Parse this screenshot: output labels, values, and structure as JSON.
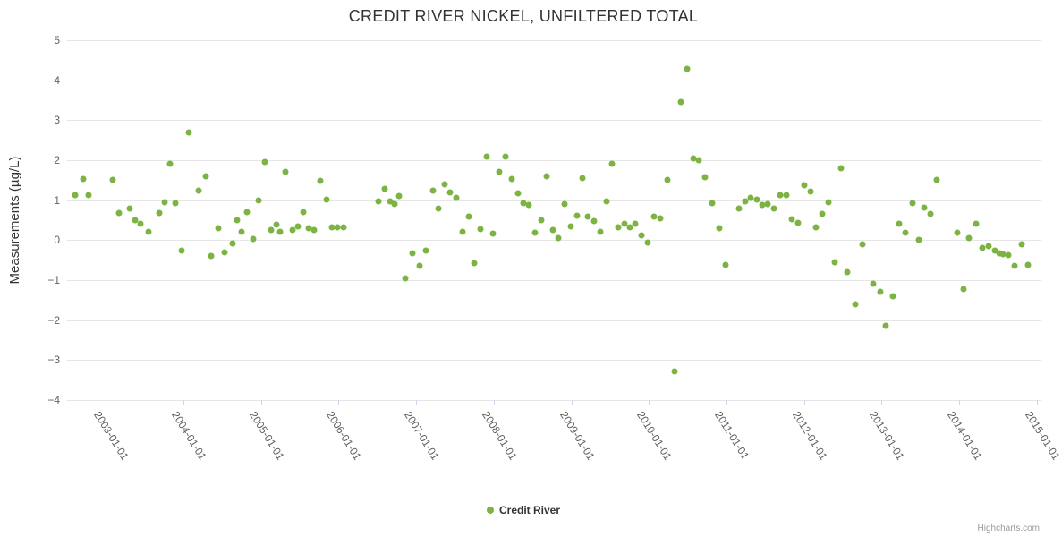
{
  "chart_data": {
    "type": "scatter",
    "title": "CREDIT RIVER NICKEL, UNFILTERED TOTAL",
    "xlabel": "",
    "ylabel": "Measurements (µg/L)",
    "ylim": [
      -4,
      5
    ],
    "xlim": [
      2002.5,
      2015.05
    ],
    "x_unit": "decimal_year",
    "grid": "horizontal",
    "legend_position": "bottom-center",
    "y_ticks": [
      5,
      4,
      3,
      2,
      1,
      0,
      -1,
      -2,
      -3,
      -4
    ],
    "x_ticks": [
      {
        "label": "2003-01-01",
        "x": 2003
      },
      {
        "label": "2004-01-01",
        "x": 2004
      },
      {
        "label": "2005-01-01",
        "x": 2005
      },
      {
        "label": "2006-01-01",
        "x": 2006
      },
      {
        "label": "2007-01-01",
        "x": 2007
      },
      {
        "label": "2008-01-01",
        "x": 2008
      },
      {
        "label": "2009-01-01",
        "x": 2009
      },
      {
        "label": "2010-01-01",
        "x": 2010
      },
      {
        "label": "2011-01-01",
        "x": 2011
      },
      {
        "label": "2012-01-01",
        "x": 2012
      },
      {
        "label": "2013-01-01",
        "x": 2013
      },
      {
        "label": "2014-01-01",
        "x": 2014
      },
      {
        "label": "2015-01-01",
        "x": 2015
      }
    ],
    "series": [
      {
        "name": "Credit River",
        "color": "#7CB342",
        "points": [
          [
            2002.6,
            1.12
          ],
          [
            2002.71,
            1.52
          ],
          [
            2002.78,
            1.12
          ],
          [
            2003.09,
            1.5
          ],
          [
            2003.17,
            0.67
          ],
          [
            2003.31,
            0.8
          ],
          [
            2003.38,
            0.51
          ],
          [
            2003.45,
            0.42
          ],
          [
            2003.55,
            0.2
          ],
          [
            2003.69,
            0.67
          ],
          [
            2003.76,
            0.94
          ],
          [
            2003.83,
            1.9
          ],
          [
            2003.9,
            0.92
          ],
          [
            2003.98,
            -0.25
          ],
          [
            2004.07,
            2.7
          ],
          [
            2004.2,
            1.25
          ],
          [
            2004.29,
            1.6
          ],
          [
            2004.36,
            -0.4
          ],
          [
            2004.45,
            0.3
          ],
          [
            2004.53,
            -0.3
          ],
          [
            2004.63,
            -0.08
          ],
          [
            2004.69,
            0.5
          ],
          [
            2004.75,
            0.22
          ],
          [
            2004.82,
            0.7
          ],
          [
            2004.9,
            0.02
          ],
          [
            2004.97,
            1.0
          ],
          [
            2005.05,
            1.95
          ],
          [
            2005.13,
            0.25
          ],
          [
            2005.2,
            0.38
          ],
          [
            2005.25,
            0.22
          ],
          [
            2005.32,
            1.72
          ],
          [
            2005.41,
            0.25
          ],
          [
            2005.48,
            0.35
          ],
          [
            2005.55,
            0.7
          ],
          [
            2005.62,
            0.3
          ],
          [
            2005.68,
            0.25
          ],
          [
            2005.76,
            1.48
          ],
          [
            2005.84,
            1.02
          ],
          [
            2005.92,
            0.33
          ],
          [
            2005.98,
            0.33
          ],
          [
            2006.06,
            0.33
          ],
          [
            2006.51,
            0.96
          ],
          [
            2006.59,
            1.28
          ],
          [
            2006.66,
            0.96
          ],
          [
            2006.72,
            0.9
          ],
          [
            2006.78,
            1.1
          ],
          [
            2006.86,
            -0.95
          ],
          [
            2006.95,
            -0.33
          ],
          [
            2007.05,
            -0.65
          ],
          [
            2007.13,
            -0.27
          ],
          [
            2007.22,
            1.23
          ],
          [
            2007.29,
            0.8
          ],
          [
            2007.37,
            1.4
          ],
          [
            2007.44,
            1.2
          ],
          [
            2007.52,
            1.05
          ],
          [
            2007.6,
            0.22
          ],
          [
            2007.68,
            0.6
          ],
          [
            2007.75,
            -0.58
          ],
          [
            2007.83,
            0.28
          ],
          [
            2007.91,
            2.08
          ],
          [
            2007.99,
            0.17
          ],
          [
            2008.07,
            1.7
          ],
          [
            2008.15,
            2.1
          ],
          [
            2008.23,
            1.52
          ],
          [
            2008.31,
            1.18
          ],
          [
            2008.38,
            0.92
          ],
          [
            2008.45,
            0.88
          ],
          [
            2008.53,
            0.18
          ],
          [
            2008.61,
            0.5
          ],
          [
            2008.68,
            1.6
          ],
          [
            2008.76,
            0.25
          ],
          [
            2008.83,
            0.05
          ],
          [
            2008.91,
            0.9
          ],
          [
            2008.99,
            0.35
          ],
          [
            2009.07,
            0.62
          ],
          [
            2009.14,
            1.55
          ],
          [
            2009.21,
            0.6
          ],
          [
            2009.29,
            0.47
          ],
          [
            2009.37,
            0.2
          ],
          [
            2009.45,
            0.97
          ],
          [
            2009.53,
            1.9
          ],
          [
            2009.61,
            0.33
          ],
          [
            2009.69,
            0.4
          ],
          [
            2009.76,
            0.33
          ],
          [
            2009.83,
            0.42
          ],
          [
            2009.91,
            0.12
          ],
          [
            2009.99,
            -0.05
          ],
          [
            2010.07,
            0.58
          ],
          [
            2010.15,
            0.55
          ],
          [
            2010.24,
            1.5
          ],
          [
            2010.33,
            -3.28
          ],
          [
            2010.41,
            3.45
          ],
          [
            2010.49,
            4.28
          ],
          [
            2010.57,
            2.05
          ],
          [
            2010.64,
            2.0
          ],
          [
            2010.72,
            1.57
          ],
          [
            2010.82,
            0.93
          ],
          [
            2010.91,
            0.3
          ],
          [
            2010.99,
            -0.62
          ],
          [
            2011.16,
            0.8
          ],
          [
            2011.24,
            0.97
          ],
          [
            2011.31,
            1.07
          ],
          [
            2011.39,
            1.02
          ],
          [
            2011.46,
            0.87
          ],
          [
            2011.53,
            0.9
          ],
          [
            2011.61,
            0.78
          ],
          [
            2011.69,
            1.12
          ],
          [
            2011.77,
            1.12
          ],
          [
            2011.84,
            0.53
          ],
          [
            2011.92,
            0.43
          ],
          [
            2012.0,
            1.38
          ],
          [
            2012.08,
            1.22
          ],
          [
            2012.16,
            0.32
          ],
          [
            2012.24,
            0.65
          ],
          [
            2012.32,
            0.95
          ],
          [
            2012.4,
            -0.55
          ],
          [
            2012.48,
            1.8
          ],
          [
            2012.56,
            -0.8
          ],
          [
            2012.66,
            -1.6
          ],
          [
            2012.75,
            -0.1
          ],
          [
            2012.89,
            -1.1
          ],
          [
            2012.98,
            -1.3
          ],
          [
            2013.06,
            -2.15
          ],
          [
            2013.15,
            -1.4
          ],
          [
            2013.23,
            0.4
          ],
          [
            2013.31,
            0.18
          ],
          [
            2013.4,
            0.92
          ],
          [
            2013.48,
            0.0
          ],
          [
            2013.55,
            0.82
          ],
          [
            2013.63,
            0.65
          ],
          [
            2013.71,
            1.5
          ],
          [
            2013.98,
            0.18
          ],
          [
            2014.06,
            -1.22
          ],
          [
            2014.13,
            0.05
          ],
          [
            2014.22,
            0.42
          ],
          [
            2014.3,
            -0.2
          ],
          [
            2014.38,
            -0.15
          ],
          [
            2014.46,
            -0.27
          ],
          [
            2014.52,
            -0.32
          ],
          [
            2014.57,
            -0.35
          ],
          [
            2014.64,
            -0.38
          ],
          [
            2014.72,
            -0.65
          ],
          [
            2014.81,
            -0.1
          ],
          [
            2014.89,
            -0.62
          ]
        ]
      }
    ]
  },
  "credits_label": "Highcharts.com"
}
